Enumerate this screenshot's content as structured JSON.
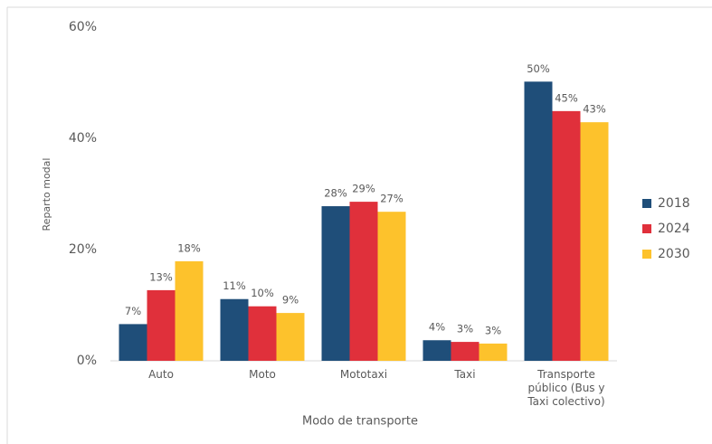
{
  "chart_data": {
    "type": "bar",
    "y_label": "Reparto modal",
    "x_label": "Modo de transporte",
    "categories": [
      "Auto",
      "Moto",
      "Mototaxi",
      "Taxi",
      "Transporte público (Bus y Taxi colectivo)"
    ],
    "series": [
      {
        "name": "2018",
        "color": "#1f4e79",
        "values": [
          6.6,
          11.1,
          27.8,
          3.7,
          50.2
        ],
        "value_labels": [
          "7%",
          "11%",
          "28%",
          "4%",
          "50%"
        ]
      },
      {
        "name": "2024",
        "color": "#e0303b",
        "values": [
          12.7,
          9.8,
          28.6,
          3.4,
          44.9
        ],
        "value_labels": [
          "13%",
          "10%",
          "29%",
          "3%",
          "45%"
        ]
      },
      {
        "name": "2030",
        "color": "#fdc22c",
        "values": [
          17.9,
          8.6,
          26.8,
          3.1,
          42.9
        ],
        "value_labels": [
          "18%",
          "9%",
          "27%",
          "3%",
          "43%"
        ]
      }
    ],
    "ylim": [
      0,
      60
    ],
    "yticks": [
      {
        "value": 0,
        "label": "0%"
      },
      {
        "value": 20,
        "label": "20%"
      },
      {
        "value": 40,
        "label": "40%"
      },
      {
        "value": 60,
        "label": "60%"
      }
    ],
    "grid": false,
    "legend": "right"
  }
}
